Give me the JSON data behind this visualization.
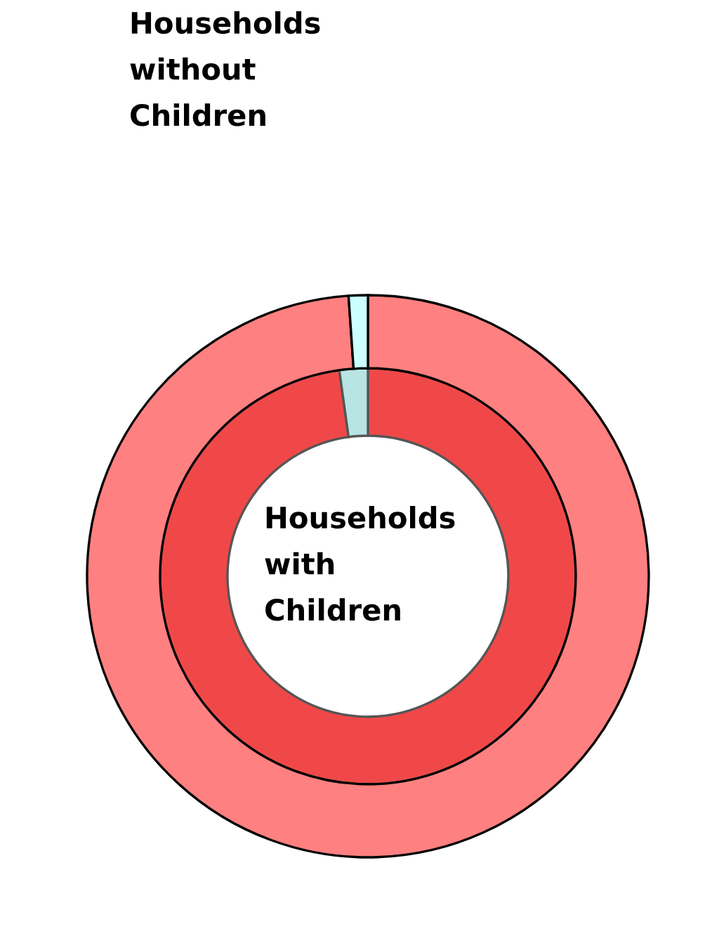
{
  "chart_data": {
    "type": "donut",
    "categories": [
      null,
      null
    ],
    "series": [
      {
        "name": "Households with Children",
        "colors": [
          "#f04848",
          "#b8e4e4"
        ],
        "values": [
          97.8,
          2.2
        ]
      },
      {
        "name": "Households without Children",
        "colors": [
          "#ff8080",
          "#ccffff"
        ],
        "values": [
          98.9,
          1.1
        ]
      }
    ]
  }
}
